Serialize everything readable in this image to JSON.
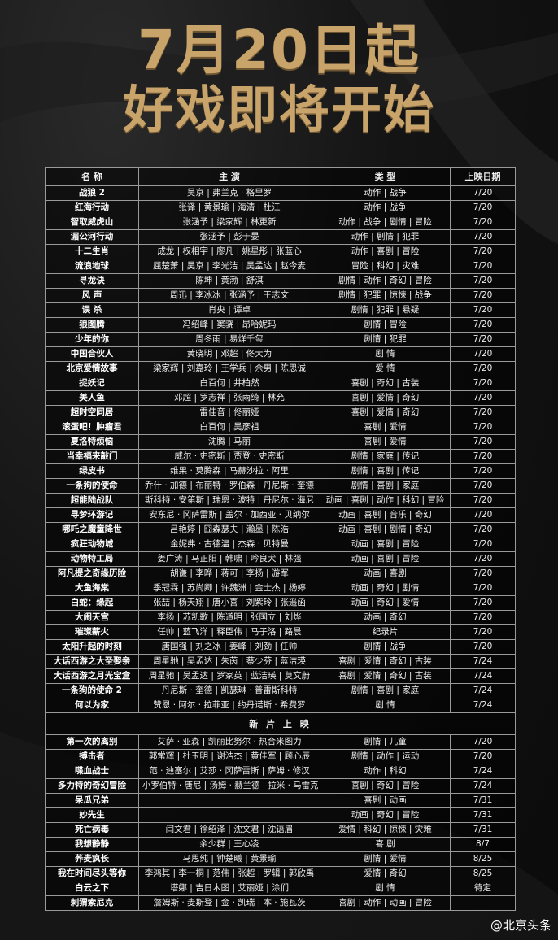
{
  "header": {
    "title_line1": "7月20日起",
    "title_line2": "好戏即将开始"
  },
  "table": {
    "columns": [
      "名 称",
      "主 演",
      "类 型",
      "上映日期"
    ],
    "rows": [
      [
        "战狼 2",
        "吴京 | 弗兰克 · 格里罗",
        "动作 | 战争",
        "7/20"
      ],
      [
        "红海行动",
        "张译 | 黄景瑜 | 海清 | 杜江",
        "动作 | 战争",
        "7/20"
      ],
      [
        "智取威虎山",
        "张涵予 | 梁家辉 | 林更新",
        "动作 | 战争 | 剧情 | 冒险",
        "7/20"
      ],
      [
        "湄公河行动",
        "张涵予 | 彭于晏",
        "动作 | 剧情 | 犯罪",
        "7/20"
      ],
      [
        "十二生肖",
        "成龙 | 权相宇 | 廖凡 | 姚星彤 | 张蓝心",
        "动作 | 喜剧 | 冒险",
        "7/20"
      ],
      [
        "流浪地球",
        "屈楚萧 | 吴京 | 李光洁 | 吴孟达 | 赵今麦",
        "冒险 | 科幻 | 灾难",
        "7/20"
      ],
      [
        "寻龙诀",
        "陈坤 | 黄渤 | 舒淇",
        "剧情 | 动作 | 奇幻 | 冒险",
        "7/20"
      ],
      [
        "风 声",
        "周迅 | 李冰冰 | 张涵予 | 王志文",
        "剧情 | 犯罪 | 惊悚 | 战争",
        "7/20"
      ],
      [
        "误 杀",
        "肖央 | 谭卓",
        "剧情 | 犯罪 | 悬疑",
        "7/20"
      ],
      [
        "狼图腾",
        "冯绍峰 | 窦骁 | 昂哈妮玛",
        "剧情 | 冒险",
        "7/20"
      ],
      [
        "少年的你",
        "周冬雨 | 易烊千玺",
        "剧情 | 犯罪",
        "7/20"
      ],
      [
        "中国合伙人",
        "黄晓明 | 邓超 | 佟大为",
        "剧 情",
        "7/20"
      ],
      [
        "北京爱情故事",
        "梁家辉 | 刘嘉玲 | 王学兵 | 佘男 | 陈思诚",
        "爱 情",
        "7/20"
      ],
      [
        "捉妖记",
        "白百何 | 井柏然",
        "喜剧 | 奇幻 | 古装",
        "7/20"
      ],
      [
        "美人鱼",
        "邓超 | 罗志祥 | 张雨绮 | 林允",
        "喜剧 | 爱情 | 奇幻",
        "7/20"
      ],
      [
        "超时空同居",
        "雷佳音 | 佟丽娅",
        "喜剧 | 爱情 | 奇幻",
        "7/20"
      ],
      [
        "滚蛋吧！肿瘤君",
        "白百何 | 吴彦祖",
        "喜剧 | 爱情",
        "7/20"
      ],
      [
        "夏洛特烦恼",
        "沈腾 | 马丽",
        "喜剧 | 爱情",
        "7/20"
      ],
      [
        "当幸福来敲门",
        "威尔 · 史密斯 | 贾登 · 史密斯",
        "剧情 | 家庭 | 传记",
        "7/20"
      ],
      [
        "绿皮书",
        "维果 · 莫腾森 | 马赫沙拉 · 阿里",
        "剧情 | 喜剧 | 传记",
        "7/20"
      ],
      [
        "一条狗的使命",
        "乔什 · 加德 | 布丽特 · 罗伯森 | 丹尼斯 · 奎德",
        "剧情 | 喜剧 | 家庭",
        "7/20"
      ],
      [
        "超能陆战队",
        "斯科特 · 安第斯 | 瑞恩 · 波特 | 丹尼尔 · 海尼",
        "动画 | 喜剧 | 动作 | 科幻 | 冒险",
        "7/20"
      ],
      [
        "寻梦环游记",
        "安东尼 · 冈萨雷斯 | 盖尔 · 加西亚 · 贝纳尔",
        "动画 | 喜剧 | 音乐 | 奇幻",
        "7/20"
      ],
      [
        "哪吒之魔童降世",
        "吕艳婷 | 囧森瑟夫 | 瀚墨 | 陈浩",
        "动画 | 喜剧 | 剧情 | 奇幻",
        "7/20"
      ],
      [
        "疯狂动物城",
        "金妮弗 · 古德温 | 杰森 · 贝特曼",
        "动画 | 喜剧 | 冒险",
        "7/20"
      ],
      [
        "动物特工局",
        "姜广涛 | 马正阳 | 韩啸 | 吟良犬 | 林强",
        "动画 | 喜剧 | 冒险",
        "7/20"
      ],
      [
        "阿凡提之奇缘历险",
        "胡谦 | 李晔 | 蒋可 | 李扬 | 游军",
        "动画 | 喜剧",
        "7/20"
      ],
      [
        "大鱼海棠",
        "季冠霖 | 苏尚卿 | 许魏洲 | 金士杰 | 杨婷",
        "动画 | 奇幻 | 剧情",
        "7/20"
      ],
      [
        "白蛇：缘起",
        "张喆 | 杨天翔 | 唐小喜 | 刘紫玲 | 张遥函",
        "动画 | 奇幻 | 爱情",
        "7/20"
      ],
      [
        "大闹天宫",
        "李扬 | 苏凯歌 | 陈道明 | 张国立 | 刘烨",
        "动画 | 奇幻",
        "7/20"
      ],
      [
        "璀璨薪火",
        "任帅 | 蓝飞洋 | 释臣伟 | 马子洛 | 路晨",
        "纪录片",
        "7/20"
      ],
      [
        "太阳升起的时刻",
        "唐国强 | 刘之冰 | 姜峰 | 刘劲 | 任帅",
        "剧情 | 战争",
        "7/20"
      ],
      [
        "大话西游之大圣娶亲",
        "周星驰 | 吴孟达 | 朱茵 | 蔡少芬 | 蓝洁瑛",
        "喜剧 | 爱情 | 奇幻 | 古装",
        "7/24"
      ],
      [
        "大话西游之月光宝盒",
        "周星驰 | 吴孟达 | 罗家英 | 蓝洁瑛 | 莫文蔚",
        "喜剧 | 爱情 | 奇幻 | 古装",
        "7/24"
      ],
      [
        "一条狗的使命 2",
        "丹尼斯 · 奎德 | 凯瑟琳 · 普雷斯科特",
        "剧情 | 喜剧 | 家庭",
        "7/24"
      ],
      [
        "何以为家",
        "赞恩 · 阿尔 · 拉菲亚 | 约丹诺斯 · 希费罗",
        "剧 情",
        "7/24"
      ]
    ],
    "section_title": "新 片 上 映",
    "new_rows": [
      [
        "第一次的离别",
        "艾萨 · 亚森 | 凯丽比努尔 · 热合米图力",
        "剧情 | 儿童",
        "7/20"
      ],
      [
        "搏击者",
        "郭常辉 | 杜玉明 | 谢浩杰 | 黄佳军 | 顾心辰",
        "剧情 | 动作 | 运动",
        "7/20"
      ],
      [
        "喋血战士",
        "范 · 迪塞尔 | 艾莎 · 冈萨雷斯 | 萨姆 · 修汉",
        "动作 | 科幻",
        "7/24"
      ],
      [
        "多力特的奇幻冒险",
        "小罗伯特 · 唐尼 | 汤姆 · 赫兰德 | 拉米 · 马雷克",
        "喜剧 | 奇幻 | 冒险",
        "7/24"
      ],
      [
        "呆瓜兄弟",
        null,
        "喜剧 | 动画",
        "7/31"
      ],
      [
        "妙先生",
        null,
        "动画 | 奇幻 | 冒险",
        "7/31"
      ],
      [
        "死亡病毒",
        "闫文君 | 徐绍泽 | 沈文君 | 沈语眉",
        "爱情 | 科幻 | 惊悚 | 灾难",
        "7/31"
      ],
      [
        "我想静静",
        "余少群 | 王心凌",
        "喜 剧",
        "8/7"
      ],
      [
        "荞麦疯长",
        "马思纯 | 钟楚曦 | 黄景瑜",
        "剧情 | 爱情",
        "8/25"
      ],
      [
        "我在时间尽头等你",
        "李鸿其 | 李一桐 | 范伟 | 张超 | 罗辑 | 郭欣禹",
        "爱情 | 奇幻",
        "8/25"
      ],
      [
        "白云之下",
        "塔娜 | 吉日木图 | 艾丽娅 | 涂们",
        "剧 情",
        "待定"
      ],
      [
        "刺猬索尼克",
        "詹姆斯 · 麦斯登 | 金 · 凯瑞 | 本 · 施瓦茨",
        "喜剧 | 动作 | 动画 | 冒险",
        null
      ]
    ]
  },
  "watermark": "@北京头条"
}
